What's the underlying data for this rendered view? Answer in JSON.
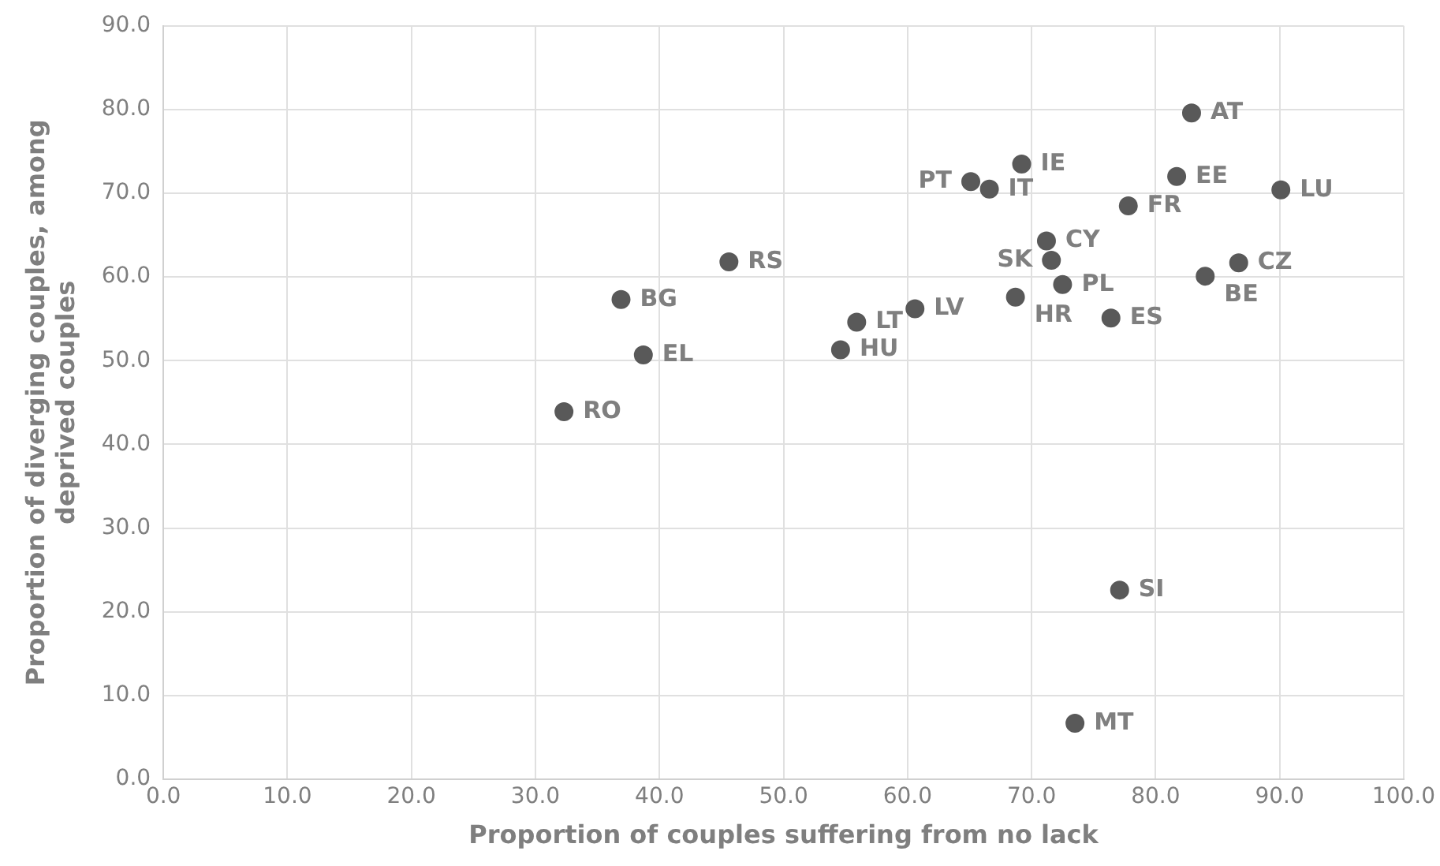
{
  "chart_data": {
    "type": "scatter",
    "xlabel": "Proportion of couples suffering from no lack",
    "ylabel": "Proportion of diverging couples, among deprived couples",
    "marker": "circle",
    "grid": true,
    "legend": false,
    "xlim": [
      0,
      100
    ],
    "ylim": [
      0,
      90
    ],
    "xticks": [
      {
        "value": 0,
        "label": "0.0"
      },
      {
        "value": 10,
        "label": "10.0"
      },
      {
        "value": 20,
        "label": "20.0"
      },
      {
        "value": 30,
        "label": "30.0"
      },
      {
        "value": 40,
        "label": "40.0"
      },
      {
        "value": 50,
        "label": "50.0"
      },
      {
        "value": 60,
        "label": "60.0"
      },
      {
        "value": 70,
        "label": "70.0"
      },
      {
        "value": 80,
        "label": "80.0"
      },
      {
        "value": 90,
        "label": "90.0"
      },
      {
        "value": 100,
        "label": "100.0"
      }
    ],
    "yticks": [
      {
        "value": 0,
        "label": "0.0"
      },
      {
        "value": 10,
        "label": "10.0"
      },
      {
        "value": 20,
        "label": "20.0"
      },
      {
        "value": 30,
        "label": "30.0"
      },
      {
        "value": 40,
        "label": "40.0"
      },
      {
        "value": 50,
        "label": "50.0"
      },
      {
        "value": 60,
        "label": "60.0"
      },
      {
        "value": 70,
        "label": "70.0"
      },
      {
        "value": 80,
        "label": "80.0"
      },
      {
        "value": 90,
        "label": "90.0"
      }
    ],
    "series": [
      {
        "color": "#595959",
        "x": [
          32.3,
          36.9,
          38.7,
          45.6,
          54.6,
          55.9,
          60.6,
          65.1,
          66.6,
          69.2,
          71.2,
          71.6,
          68.7,
          72.5,
          76.4,
          77.8,
          81.7,
          82.9,
          90.1,
          84.0,
          86.7,
          77.1,
          73.5
        ],
        "values": [
          43.9,
          57.3,
          50.7,
          61.8,
          51.3,
          54.6,
          56.2,
          71.4,
          70.5,
          73.5,
          64.3,
          62.0,
          57.6,
          59.1,
          55.1,
          68.5,
          72.0,
          79.6,
          70.4,
          60.1,
          61.7,
          22.6,
          6.7
        ]
      }
    ],
    "annotations": [
      {
        "text": "RO",
        "x": 32.3,
        "y": 43.9
      },
      {
        "text": "BG",
        "x": 36.9,
        "y": 57.3
      },
      {
        "text": "EL",
        "x": 38.7,
        "y": 50.7
      },
      {
        "text": "RS",
        "x": 45.6,
        "y": 61.8
      },
      {
        "text": "HU",
        "x": 54.6,
        "y": 51.3
      },
      {
        "text": "LT",
        "x": 55.9,
        "y": 54.6
      },
      {
        "text": "LV",
        "x": 60.6,
        "y": 56.2
      },
      {
        "text": "PT",
        "x": 65.1,
        "y": 71.4
      },
      {
        "text": "IT",
        "x": 66.6,
        "y": 70.5
      },
      {
        "text": "IE",
        "x": 69.2,
        "y": 73.5
      },
      {
        "text": "CY",
        "x": 71.2,
        "y": 64.3
      },
      {
        "text": "SK",
        "x": 71.6,
        "y": 62.0
      },
      {
        "text": "HR",
        "x": 68.7,
        "y": 57.6
      },
      {
        "text": "PL",
        "x": 72.5,
        "y": 59.1
      },
      {
        "text": "ES",
        "x": 76.4,
        "y": 55.1
      },
      {
        "text": "FR",
        "x": 77.8,
        "y": 68.5
      },
      {
        "text": "EE",
        "x": 81.7,
        "y": 72.0
      },
      {
        "text": "AT",
        "x": 82.9,
        "y": 79.6
      },
      {
        "text": "LU",
        "x": 90.1,
        "y": 70.4
      },
      {
        "text": "BE",
        "x": 84.0,
        "y": 60.1
      },
      {
        "text": "CZ",
        "x": 86.7,
        "y": 61.7
      },
      {
        "text": "SI",
        "x": 77.1,
        "y": 22.6
      },
      {
        "text": "MT",
        "x": 73.5,
        "y": 6.7
      }
    ]
  }
}
